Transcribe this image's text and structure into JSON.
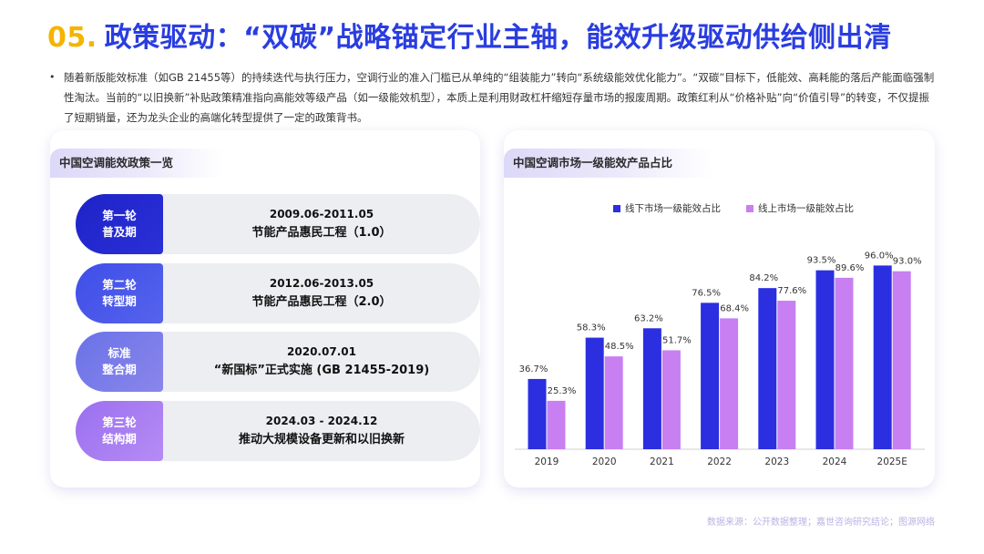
{
  "header": {
    "number": "05.",
    "title": "政策驱动：“双碳”战略锚定行业主轴，能效升级驱动供给侧出清"
  },
  "intro": {
    "bullet": "•",
    "text": "随着新版能效标准（如GB 21455等）的持续迭代与执行压力，空调行业的准入门槛已从单纯的“组装能力”转向“系统级能效优化能力”。“双碳”目标下，低能效、高耗能的落后产能面临强制性淘汰。当前的“以旧换新”补贴政策精准指向高能效等级产品（如一级能效机型），本质上是利用财政杠杆缩短存量市场的报废周期。政策红利从“价格补贴”向“价值引导”的转变，不仅提振了短期销量，还为龙头企业的高端化转型提供了一定的政策背书。"
  },
  "policy_card": {
    "title": "中国空调能效政策一览",
    "items": [
      {
        "label_line1": "第一轮",
        "label_line2": "普及期",
        "date": "2009.06-2011.05",
        "name": "节能产品惠民工程（1.0）",
        "color_from": "#1e23c8",
        "color_to": "#2a30d6"
      },
      {
        "label_line1": "第二轮",
        "label_line2": "转型期",
        "date": "2012.06-2013.05",
        "name": "节能产品惠民工程（2.0）",
        "color_from": "#3f4ee8",
        "color_to": "#5563ec"
      },
      {
        "label_line1": "标准",
        "label_line2": "整合期",
        "date": "2020.07.01",
        "name": "“新国标”正式实施 (GB 21455-2019)",
        "color_from": "#6a72e8",
        "color_to": "#8a86ea"
      },
      {
        "label_line1": "第三轮",
        "label_line2": "结构期",
        "date": "2024.03 - 2024.12",
        "name": "推动大规模设备更新和以旧换新",
        "color_from": "#9b6ff0",
        "color_to": "#b58cf4"
      }
    ]
  },
  "chart_card": {
    "title": "中国空调市场一级能效产品占比"
  },
  "chart_data": {
    "type": "bar",
    "categories": [
      "2019",
      "2020",
      "2021",
      "2022",
      "2023",
      "2024",
      "2025E"
    ],
    "series": [
      {
        "name": "线下市场一级能效占比",
        "color": "#2b2fe0",
        "values": [
          36.7,
          58.3,
          63.2,
          76.5,
          84.2,
          93.5,
          96.0
        ],
        "labels": [
          "36.7%",
          "58.3%",
          "63.2%",
          "76.5%",
          "84.2%",
          "93.5%",
          "96.0%"
        ]
      },
      {
        "name": "线上市场一级能效占比",
        "color": "#c77ff2",
        "values": [
          25.3,
          48.5,
          51.7,
          68.4,
          77.6,
          89.6,
          93.0
        ],
        "labels": [
          "25.3%",
          "48.5%",
          "51.7%",
          "68.4%",
          "77.6%",
          "89.6%",
          "93.0%"
        ]
      }
    ],
    "ylim": [
      0,
      100
    ],
    "legend_position": "top-center",
    "grid": false
  },
  "footer": {
    "source": "数据来源：公开数据整理；嘉世咨询研究结论；图源网络"
  }
}
